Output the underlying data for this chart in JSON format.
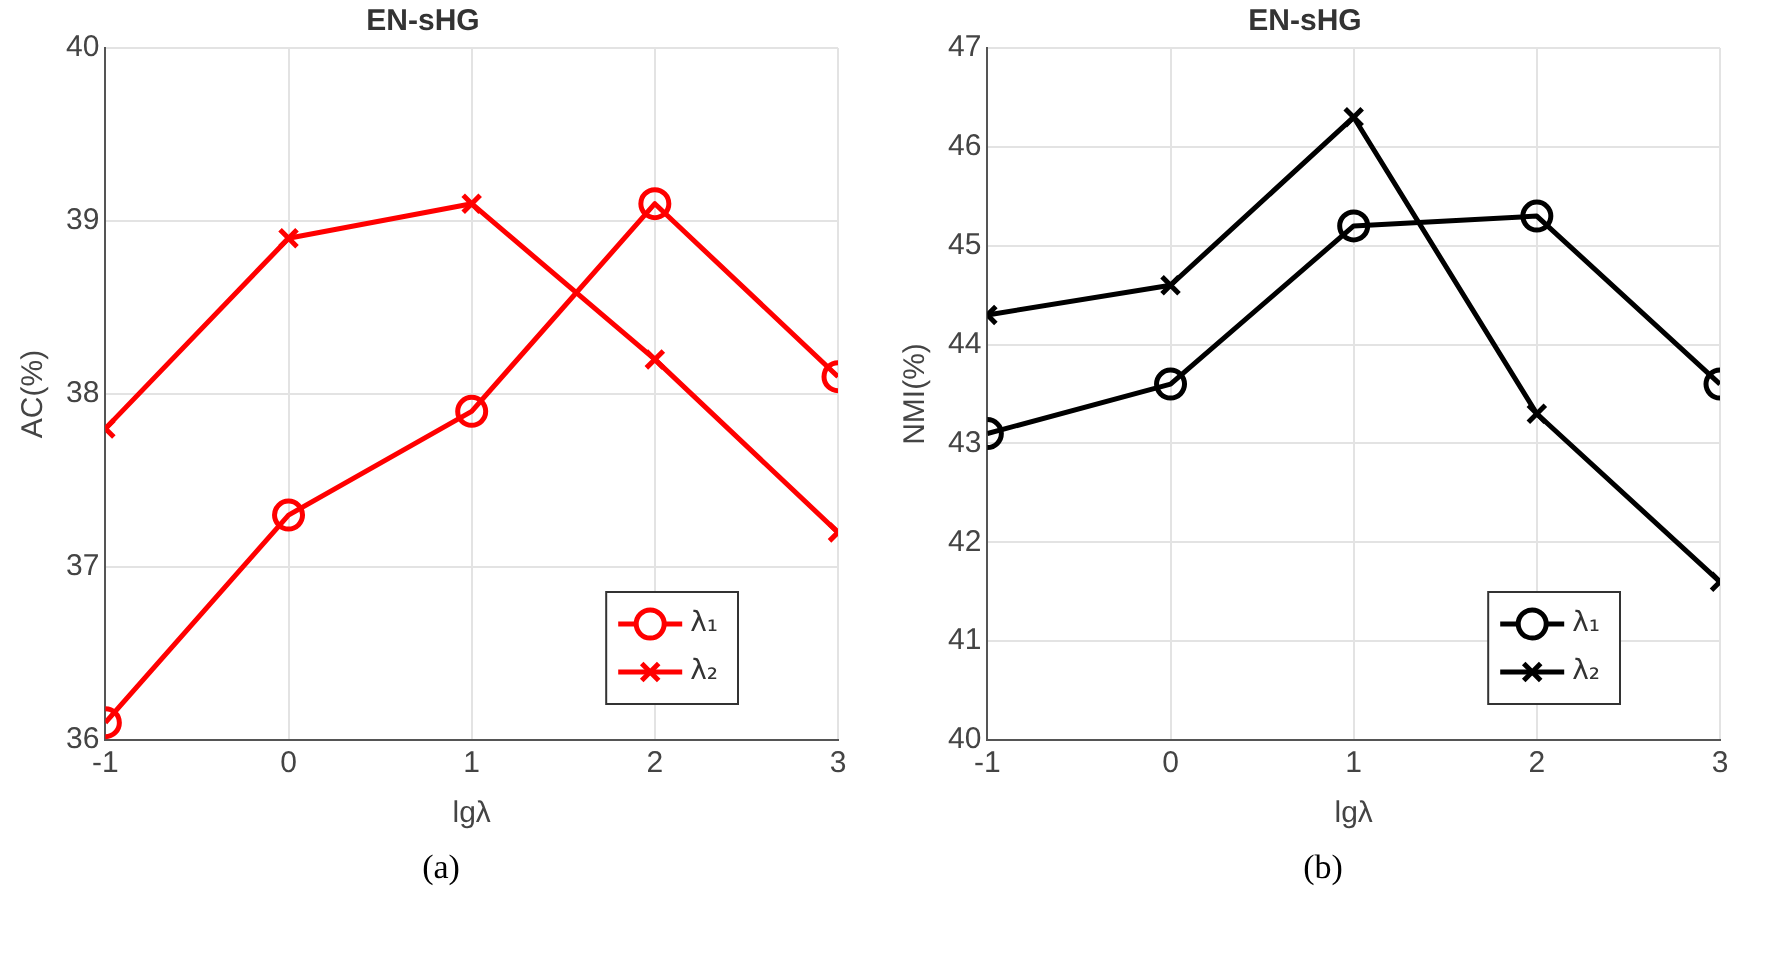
{
  "chart_data": [
    {
      "type": "line",
      "title": "EN-sHG",
      "xlabel": "lgλ",
      "ylabel": "AC(%)",
      "x": [
        -1,
        0,
        1,
        2,
        3
      ],
      "xlim": [
        -1,
        3
      ],
      "xticks": [
        -1,
        0,
        1,
        2,
        3
      ],
      "ylim": [
        36,
        40
      ],
      "yticks": [
        36,
        37,
        38,
        39,
        40
      ],
      "grid": true,
      "legend": "bottom right",
      "annotations": [
        "(a)"
      ],
      "series": [
        {
          "name": "λ₁",
          "color": "#ff0000",
          "marker": "circle",
          "values": [
            36.1,
            37.3,
            37.9,
            39.1,
            38.1
          ]
        },
        {
          "name": "λ₂",
          "color": "#ff0000",
          "marker": "cross",
          "values": [
            37.8,
            38.9,
            39.1,
            38.2,
            37.2
          ]
        }
      ]
    },
    {
      "type": "line",
      "title": "EN-sHG",
      "xlabel": "lgλ",
      "ylabel": "NMI(%)",
      "x": [
        -1,
        0,
        1,
        2,
        3
      ],
      "xlim": [
        -1,
        3
      ],
      "xticks": [
        -1,
        0,
        1,
        2,
        3
      ],
      "ylim": [
        40,
        47
      ],
      "yticks": [
        40,
        41,
        42,
        43,
        44,
        45,
        46,
        47
      ],
      "grid": true,
      "legend": "bottom right",
      "annotations": [
        "(b)"
      ],
      "series": [
        {
          "name": "λ₁",
          "color": "#000000",
          "marker": "circle",
          "values": [
            43.1,
            43.6,
            45.2,
            45.3,
            43.6
          ]
        },
        {
          "name": "λ₂",
          "color": "#000000",
          "marker": "cross",
          "values": [
            44.3,
            44.6,
            46.3,
            43.3,
            41.6
          ]
        }
      ]
    }
  ]
}
